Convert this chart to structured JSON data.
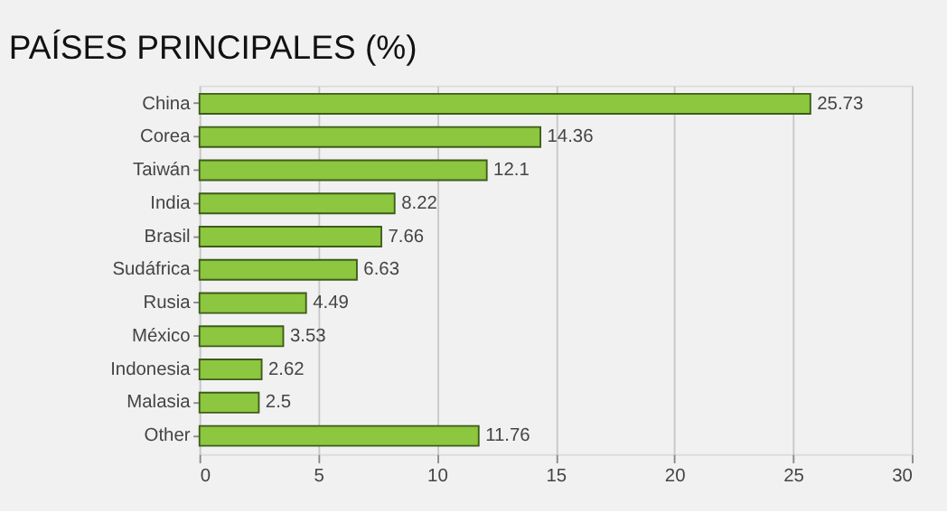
{
  "chart_data": {
    "type": "bar",
    "orientation": "horizontal",
    "title": "PAÍSES PRINCIPALES (%)",
    "categories": [
      "China",
      "Corea",
      "Taiwán",
      "India",
      "Brasil",
      "Sudáfrica",
      "Rusia",
      "México",
      "Indonesia",
      "Malasia",
      "Other"
    ],
    "values": [
      25.73,
      14.36,
      12.1,
      8.22,
      7.66,
      6.63,
      4.49,
      3.53,
      2.62,
      2.5,
      11.76
    ],
    "color": "#8dc63f",
    "xlim": [
      0,
      30
    ],
    "xticks": [
      0,
      5,
      10,
      15,
      20,
      25,
      30
    ],
    "grid": "x",
    "data_labels": true
  }
}
